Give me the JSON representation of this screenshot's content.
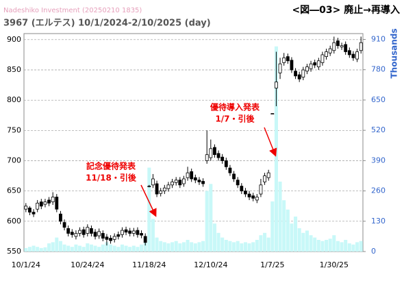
{
  "chart_data": {
    "type": "candlestick",
    "source": "Nadeshiko Investment (20250210 1835)",
    "title": "3967 (エルテス) 10/1/2024-2/10/2025 (day)",
    "figure_label": "<図―03> 廃止→再導入",
    "y2_label": "Thousands",
    "annotations": [
      [
        "記念優待発表",
        "11/18・引後"
      ],
      [
        "優待導入発表",
        "1/7・引後"
      ]
    ],
    "categories": [
      "10/1/24",
      null,
      null,
      null,
      null,
      null,
      null,
      null,
      null,
      null,
      null,
      null,
      null,
      null,
      null,
      null,
      "10/24/24",
      null,
      null,
      null,
      null,
      null,
      null,
      null,
      null,
      null,
      null,
      null,
      null,
      null,
      null,
      null,
      "11/18/24",
      null,
      null,
      null,
      null,
      null,
      null,
      null,
      null,
      null,
      null,
      null,
      null,
      null,
      null,
      null,
      "12/10/24",
      null,
      null,
      null,
      null,
      null,
      null,
      null,
      null,
      null,
      null,
      null,
      null,
      null,
      null,
      null,
      "1/7/25",
      null,
      null,
      null,
      null,
      null,
      null,
      null,
      null,
      null,
      null,
      null,
      null,
      null,
      null,
      null,
      "1/30/25",
      null,
      null,
      null,
      null,
      null,
      null,
      null
    ],
    "open": [
      620,
      622,
      615,
      620,
      632,
      628,
      635,
      632,
      640,
      612,
      598,
      588,
      582,
      575,
      580,
      586,
      580,
      588,
      582,
      576,
      580,
      574,
      572,
      570,
      578,
      578,
      586,
      584,
      580,
      585,
      580,
      575,
      658,
      660,
      662,
      646,
      650,
      654,
      660,
      664,
      668,
      662,
      672,
      682,
      672,
      668,
      666,
      700,
      705,
      722,
      712,
      706,
      700,
      688,
      678,
      668,
      658,
      650,
      645,
      642,
      635,
      645,
      665,
      672,
      778,
      820,
      845,
      862,
      872,
      866,
      848,
      842,
      838,
      848,
      852,
      862,
      855,
      862,
      872,
      878,
      882,
      898,
      888,
      892,
      882,
      876,
      868,
      882
    ],
    "high": [
      630,
      625,
      620,
      635,
      637,
      637,
      640,
      648,
      645,
      617,
      603,
      593,
      587,
      585,
      590,
      591,
      595,
      593,
      587,
      588,
      585,
      579,
      577,
      580,
      583,
      590,
      591,
      589,
      589,
      590,
      585,
      580,
      660,
      678,
      667,
      655,
      660,
      665,
      670,
      673,
      673,
      675,
      690,
      687,
      677,
      673,
      671,
      750,
      735,
      727,
      717,
      711,
      705,
      693,
      683,
      673,
      663,
      655,
      650,
      647,
      645,
      670,
      680,
      685,
      778,
      880,
      870,
      878,
      877,
      871,
      853,
      847,
      855,
      860,
      865,
      867,
      870,
      880,
      885,
      890,
      905,
      903,
      895,
      897,
      887,
      881,
      885,
      905
    ],
    "low": [
      615,
      610,
      607,
      615,
      620,
      623,
      625,
      627,
      615,
      595,
      585,
      575,
      573,
      570,
      575,
      573,
      575,
      575,
      570,
      571,
      567,
      560,
      563,
      565,
      570,
      573,
      577,
      575,
      575,
      573,
      572,
      560,
      656,
      655,
      640,
      641,
      645,
      649,
      655,
      659,
      655,
      657,
      667,
      665,
      663,
      660,
      657,
      695,
      700,
      705,
      700,
      695,
      685,
      675,
      665,
      655,
      645,
      640,
      635,
      633,
      630,
      640,
      660,
      667,
      778,
      790,
      835,
      857,
      860,
      845,
      835,
      830,
      833,
      843,
      847,
      853,
      850,
      857,
      867,
      873,
      877,
      885,
      883,
      875,
      870,
      865,
      863,
      877
    ],
    "close": [
      625,
      615,
      612,
      630,
      625,
      632,
      630,
      640,
      620,
      600,
      590,
      580,
      578,
      580,
      585,
      578,
      590,
      580,
      575,
      583,
      572,
      570,
      568,
      575,
      575,
      585,
      582,
      580,
      584,
      578,
      577,
      565,
      658,
      670,
      645,
      650,
      655,
      660,
      665,
      668,
      660,
      670,
      680,
      670,
      668,
      665,
      662,
      710,
      720,
      710,
      705,
      700,
      690,
      680,
      670,
      660,
      650,
      645,
      640,
      638,
      640,
      660,
      675,
      680,
      778,
      830,
      860,
      870,
      865,
      850,
      840,
      835,
      850,
      855,
      860,
      858,
      865,
      875,
      880,
      885,
      895,
      890,
      890,
      880,
      875,
      870,
      880,
      895
    ],
    "volume": [
      15,
      20,
      25,
      20,
      15,
      18,
      35,
      40,
      60,
      45,
      30,
      25,
      20,
      30,
      25,
      20,
      35,
      30,
      25,
      20,
      30,
      40,
      30,
      25,
      20,
      30,
      25,
      20,
      25,
      20,
      30,
      40,
      360,
      140,
      60,
      45,
      40,
      35,
      40,
      45,
      35,
      40,
      50,
      40,
      35,
      40,
      45,
      260,
      290,
      120,
      80,
      60,
      50,
      45,
      40,
      45,
      35,
      40,
      35,
      40,
      50,
      70,
      80,
      60,
      215,
      880,
      300,
      220,
      180,
      120,
      150,
      100,
      80,
      90,
      70,
      60,
      50,
      45,
      50,
      55,
      70,
      45,
      40,
      50,
      35,
      30,
      40,
      45
    ],
    "up_color": "#ffffff",
    "down_color": "#000000",
    "volume_color": "#c8f8f8",
    "ylim": [
      550,
      910
    ],
    "yticks": [
      550,
      600,
      650,
      700,
      750,
      800,
      850,
      900
    ],
    "y2lim": [
      0,
      935
    ],
    "y2ticks": [
      0,
      130,
      260,
      390,
      520,
      650,
      780,
      910
    ],
    "grid": true
  }
}
